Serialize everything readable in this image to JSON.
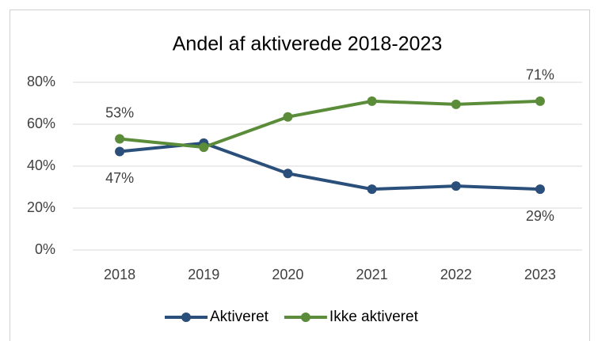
{
  "chart_data": {
    "type": "line",
    "title": "Andel af aktiverede 2018-2023",
    "categories": [
      "2018",
      "2019",
      "2020",
      "2021",
      "2022",
      "2023"
    ],
    "series": [
      {
        "name": "Aktiveret",
        "color": "#2a4f7a",
        "values": [
          47,
          51,
          36.5,
          29,
          30.5,
          29
        ],
        "value_labels": [
          "47%",
          null,
          null,
          null,
          null,
          "29%"
        ]
      },
      {
        "name": "Ikke aktiveret",
        "color": "#5b8c3a",
        "values": [
          53,
          49,
          63.5,
          71,
          69.5,
          71
        ],
        "value_labels": [
          "53%",
          null,
          null,
          null,
          null,
          "71%"
        ]
      }
    ],
    "ylim": [
      0,
      80
    ],
    "yticks": [
      {
        "value": 0,
        "label": "0%"
      },
      {
        "value": 20,
        "label": "20%"
      },
      {
        "value": 40,
        "label": "40%"
      },
      {
        "value": 60,
        "label": "60%"
      },
      {
        "value": 80,
        "label": "80%"
      }
    ],
    "grid": true,
    "legend": "bottom"
  }
}
